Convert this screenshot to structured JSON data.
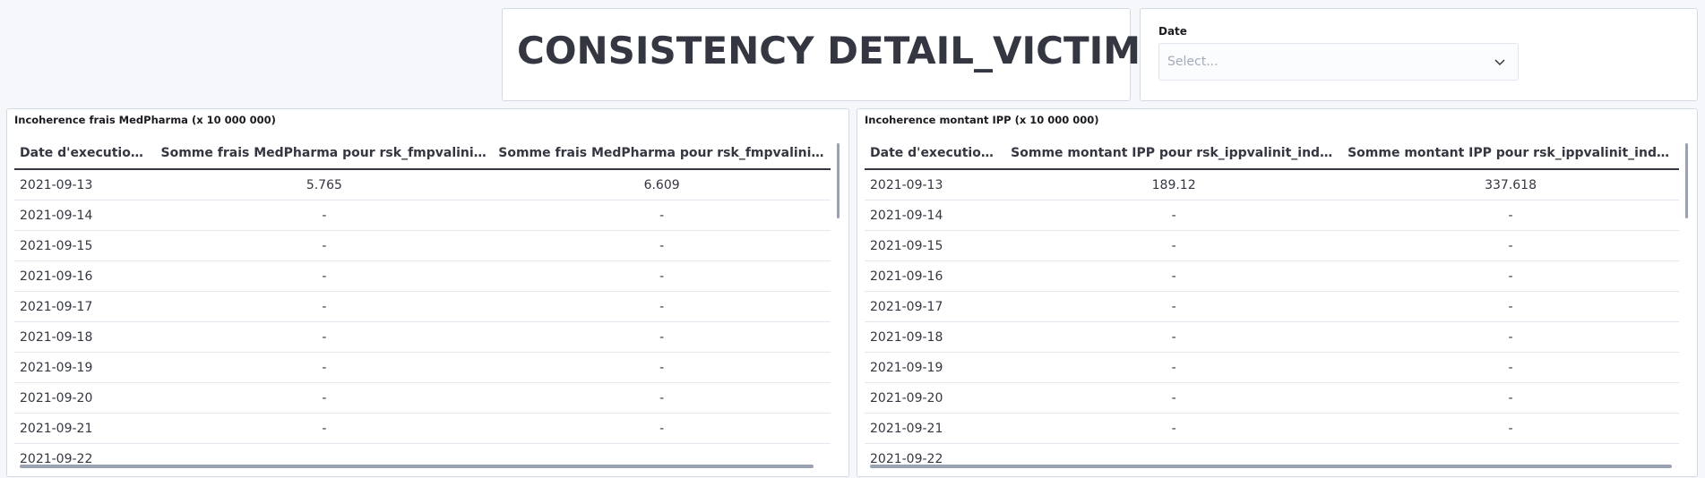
{
  "dashboard": {
    "title": "CONSISTENCY DETAIL_VICTIME"
  },
  "date_control": {
    "label": "Date",
    "placeholder": "Select..."
  },
  "left_table": {
    "title": "Incoherence frais MedPharma (x 10 000 000)",
    "columns": [
      "Date d'execution p...",
      "Somme frais MedPharma pour rsk_fmpvalinit_ind=null",
      "Somme frais MedPharma pour rsk_fmpvalinit_ind=N"
    ],
    "rows": [
      [
        "2021-09-13",
        "5.765",
        "6.609"
      ],
      [
        "2021-09-14",
        "-",
        "-"
      ],
      [
        "2021-09-15",
        "-",
        "-"
      ],
      [
        "2021-09-16",
        "-",
        "-"
      ],
      [
        "2021-09-17",
        "-",
        "-"
      ],
      [
        "2021-09-18",
        "-",
        "-"
      ],
      [
        "2021-09-19",
        "-",
        "-"
      ],
      [
        "2021-09-20",
        "-",
        "-"
      ],
      [
        "2021-09-21",
        "-",
        "-"
      ],
      [
        "2021-09-22",
        "",
        ""
      ]
    ]
  },
  "right_table": {
    "title": "Incoherence montant IPP (x 10 000 000)",
    "columns": [
      "Date d'execution p...",
      "Somme montant IPP pour rsk_ippvalinit_ind=null",
      "Somme montant IPP pour rsk_ippvalinit_ind=N"
    ],
    "rows": [
      [
        "2021-09-13",
        "189.12",
        "337.618"
      ],
      [
        "2021-09-14",
        "-",
        "-"
      ],
      [
        "2021-09-15",
        "-",
        "-"
      ],
      [
        "2021-09-16",
        "-",
        "-"
      ],
      [
        "2021-09-17",
        "-",
        "-"
      ],
      [
        "2021-09-18",
        "-",
        "-"
      ],
      [
        "2021-09-19",
        "-",
        "-"
      ],
      [
        "2021-09-20",
        "-",
        "-"
      ],
      [
        "2021-09-21",
        "-",
        "-"
      ],
      [
        "2021-09-22",
        "",
        ""
      ]
    ]
  }
}
